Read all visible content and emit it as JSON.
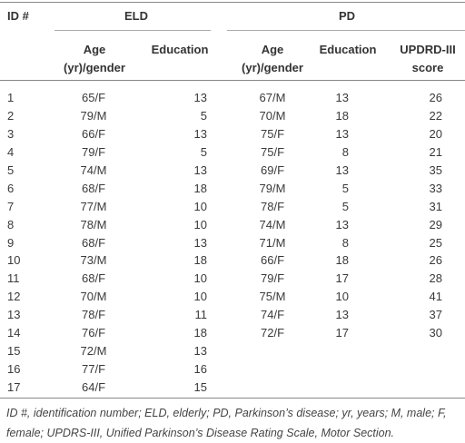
{
  "table": {
    "header": {
      "id": "ID #",
      "groups": [
        "ELD",
        "PD"
      ],
      "columns": [
        "Age (yr)/gender",
        "Education",
        "Age (yr)/gender",
        "Education",
        "UPDRD-III score"
      ]
    },
    "rows": [
      [
        "1",
        "65/F",
        "13",
        "67/M",
        "13",
        "26"
      ],
      [
        "2",
        "79/M",
        "5",
        "70/M",
        "18",
        "22"
      ],
      [
        "3",
        "66/F",
        "13",
        "75/F",
        "13",
        "20"
      ],
      [
        "4",
        "79/F",
        "5",
        "75/F",
        "8",
        "21"
      ],
      [
        "5",
        "74/M",
        "13",
        "69/F",
        "13",
        "35"
      ],
      [
        "6",
        "68/F",
        "18",
        "79/M",
        "5",
        "33"
      ],
      [
        "7",
        "77/M",
        "10",
        "78/F",
        "5",
        "31"
      ],
      [
        "8",
        "78/M",
        "10",
        "74/M",
        "13",
        "29"
      ],
      [
        "9",
        "68/F",
        "13",
        "71/M",
        "8",
        "25"
      ],
      [
        "10",
        "73/M",
        "18",
        "66/F",
        "18",
        "26"
      ],
      [
        "11",
        "68/F",
        "10",
        "79/F",
        "17",
        "28"
      ],
      [
        "12",
        "70/M",
        "10",
        "75/M",
        "10",
        "41"
      ],
      [
        "13",
        "78/F",
        "11",
        "74/F",
        "13",
        "37"
      ],
      [
        "14",
        "76/F",
        "18",
        "72/F",
        "17",
        "30"
      ],
      [
        "15",
        "72/M",
        "13"
      ],
      [
        "16",
        "77/F",
        "16"
      ],
      [
        "17",
        "64/F",
        "15"
      ]
    ],
    "footnote": "ID #, identification number; ELD, elderly; PD, Parkinson’s disease; yr, years; M, male; F, female; UPDRS-III, Unified Parkinson’s Disease Rating Scale, Motor Section."
  }
}
